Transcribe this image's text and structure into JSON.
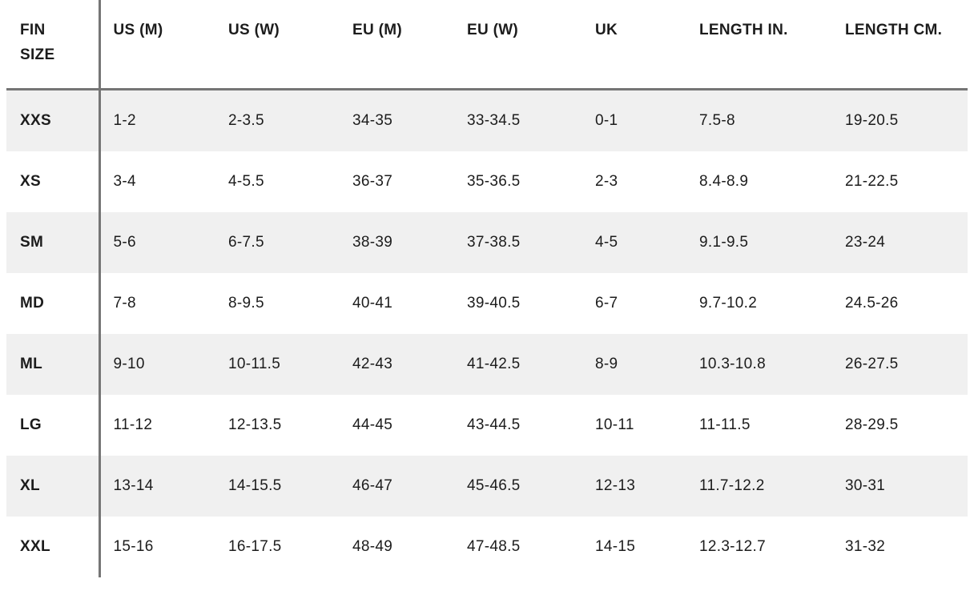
{
  "chart_data": {
    "type": "table",
    "columns": [
      "FIN SIZE",
      "US (M)",
      "US (W)",
      "EU (M)",
      "EU (W)",
      "UK",
      "LENGTH IN.",
      "LENGTH CM."
    ],
    "rows": [
      [
        "XXS",
        "1-2",
        "2-3.5",
        "34-35",
        "33-34.5",
        "0-1",
        "7.5-8",
        "19-20.5"
      ],
      [
        "XS",
        "3-4",
        "4-5.5",
        "36-37",
        "35-36.5",
        "2-3",
        "8.4-8.9",
        "21-22.5"
      ],
      [
        "SM",
        "5-6",
        "6-7.5",
        "38-39",
        "37-38.5",
        "4-5",
        "9.1-9.5",
        "23-24"
      ],
      [
        "MD",
        "7-8",
        "8-9.5",
        "40-41",
        "39-40.5",
        "6-7",
        "9.7-10.2",
        "24.5-26"
      ],
      [
        "ML",
        "9-10",
        "10-11.5",
        "42-43",
        "41-42.5",
        "8-9",
        "10.3-10.8",
        "26-27.5"
      ],
      [
        "LG",
        "11-12",
        "12-13.5",
        "44-45",
        "43-44.5",
        "10-11",
        "11-11.5",
        "28-29.5"
      ],
      [
        "XL",
        "13-14",
        "14-15.5",
        "46-47",
        "45-46.5",
        "12-13",
        "11.7-12.2",
        "30-31"
      ],
      [
        "XXL",
        "15-16",
        "16-17.5",
        "48-49",
        "47-48.5",
        "14-15",
        "12.3-12.7",
        "31-32"
      ]
    ],
    "layout": {
      "grid": "off",
      "row_stripes": true,
      "striped_row_indices": [
        0,
        2,
        4,
        6
      ]
    }
  },
  "colors": {
    "stripe": "#f0f0f0",
    "rule": "#757575",
    "text": "#1c1c1c",
    "background": "#ffffff"
  }
}
